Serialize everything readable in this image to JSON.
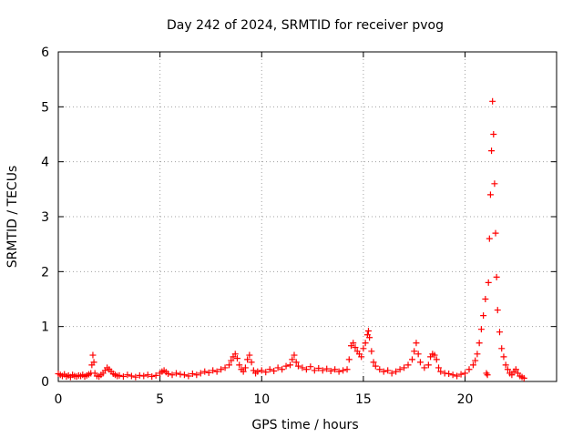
{
  "chart_data": {
    "type": "scatter",
    "title": "Day 242 of 2024, SRMTID for receiver pvog",
    "xlabel": "GPS time / hours",
    "ylabel": "SRMTID / TECUs",
    "xlim": [
      0,
      24.5
    ],
    "ylim": [
      0,
      6
    ],
    "xticks": [
      0,
      5,
      10,
      15,
      20
    ],
    "xtick_labels": [
      "0",
      "5",
      "10",
      "15",
      "20"
    ],
    "yticks": [
      0,
      1,
      2,
      3,
      4,
      5,
      6
    ],
    "ytick_labels": [
      "0",
      "1",
      "2",
      "3",
      "4",
      "5",
      "6"
    ],
    "grid": true,
    "marker": "plus",
    "color": "#ff0000",
    "series": [
      {
        "name": "SRMTID",
        "x": [
          0.0,
          0.1,
          0.2,
          0.3,
          0.4,
          0.5,
          0.6,
          0.7,
          0.8,
          0.9,
          1.0,
          1.1,
          1.2,
          1.3,
          1.4,
          1.5,
          1.6,
          1.65,
          1.7,
          1.75,
          1.8,
          1.9,
          2.0,
          2.1,
          2.2,
          2.3,
          2.4,
          2.5,
          2.6,
          2.7,
          2.8,
          2.9,
          3.0,
          3.2,
          3.4,
          3.6,
          3.8,
          4.0,
          4.2,
          4.4,
          4.6,
          4.8,
          5.0,
          5.1,
          5.2,
          5.3,
          5.4,
          5.6,
          5.8,
          6.0,
          6.2,
          6.4,
          6.6,
          6.8,
          7.0,
          7.2,
          7.4,
          7.6,
          7.8,
          8.0,
          8.2,
          8.4,
          8.5,
          8.6,
          8.7,
          8.8,
          8.9,
          9.0,
          9.1,
          9.2,
          9.3,
          9.4,
          9.5,
          9.6,
          9.7,
          9.8,
          10.0,
          10.2,
          10.4,
          10.6,
          10.8,
          11.0,
          11.2,
          11.4,
          11.5,
          11.6,
          11.7,
          11.8,
          12.0,
          12.2,
          12.4,
          12.6,
          12.8,
          13.0,
          13.2,
          13.4,
          13.6,
          13.8,
          14.0,
          14.2,
          14.3,
          14.4,
          14.5,
          14.6,
          14.7,
          14.8,
          14.9,
          15.0,
          15.1,
          15.2,
          15.25,
          15.3,
          15.4,
          15.5,
          15.6,
          15.8,
          16.0,
          16.2,
          16.4,
          16.6,
          16.8,
          17.0,
          17.2,
          17.4,
          17.5,
          17.6,
          17.7,
          17.8,
          18.0,
          18.2,
          18.3,
          18.4,
          18.5,
          18.6,
          18.7,
          18.8,
          19.0,
          19.2,
          19.4,
          19.6,
          19.8,
          20.0,
          20.2,
          20.4,
          20.5,
          20.6,
          20.7,
          20.8,
          20.9,
          21.0,
          21.05,
          21.1,
          21.15,
          21.2,
          21.25,
          21.3,
          21.35,
          21.4,
          21.45,
          21.5,
          21.55,
          21.6,
          21.7,
          21.8,
          21.9,
          22.0,
          22.1,
          22.2,
          22.3,
          22.4,
          22.5,
          22.6,
          22.7,
          22.8,
          22.9
        ],
        "y": [
          0.14,
          0.12,
          0.1,
          0.13,
          0.09,
          0.11,
          0.08,
          0.12,
          0.1,
          0.09,
          0.11,
          0.1,
          0.12,
          0.09,
          0.11,
          0.13,
          0.15,
          0.3,
          0.48,
          0.35,
          0.15,
          0.1,
          0.09,
          0.12,
          0.15,
          0.2,
          0.25,
          0.22,
          0.18,
          0.14,
          0.12,
          0.1,
          0.11,
          0.09,
          0.12,
          0.1,
          0.08,
          0.11,
          0.1,
          0.12,
          0.09,
          0.11,
          0.15,
          0.18,
          0.2,
          0.17,
          0.14,
          0.12,
          0.15,
          0.13,
          0.12,
          0.1,
          0.14,
          0.12,
          0.15,
          0.18,
          0.16,
          0.2,
          0.18,
          0.22,
          0.25,
          0.3,
          0.38,
          0.45,
          0.5,
          0.42,
          0.3,
          0.22,
          0.18,
          0.25,
          0.4,
          0.48,
          0.35,
          0.2,
          0.15,
          0.18,
          0.2,
          0.17,
          0.22,
          0.19,
          0.25,
          0.22,
          0.28,
          0.3,
          0.4,
          0.48,
          0.35,
          0.28,
          0.25,
          0.22,
          0.27,
          0.2,
          0.24,
          0.2,
          0.23,
          0.19,
          0.22,
          0.18,
          0.2,
          0.22,
          0.4,
          0.65,
          0.7,
          0.62,
          0.55,
          0.5,
          0.45,
          0.6,
          0.7,
          0.85,
          0.92,
          0.8,
          0.55,
          0.35,
          0.28,
          0.22,
          0.18,
          0.2,
          0.15,
          0.18,
          0.22,
          0.25,
          0.3,
          0.4,
          0.55,
          0.7,
          0.5,
          0.35,
          0.25,
          0.3,
          0.45,
          0.5,
          0.48,
          0.4,
          0.25,
          0.18,
          0.15,
          0.14,
          0.12,
          0.1,
          0.13,
          0.15,
          0.22,
          0.3,
          0.38,
          0.5,
          0.7,
          0.95,
          1.2,
          1.5,
          0.15,
          0.12,
          1.8,
          2.6,
          3.4,
          4.2,
          5.1,
          4.5,
          3.6,
          2.7,
          1.9,
          1.3,
          0.9,
          0.6,
          0.45,
          0.3,
          0.22,
          0.15,
          0.12,
          0.18,
          0.22,
          0.15,
          0.1,
          0.08,
          0.06
        ]
      }
    ]
  }
}
